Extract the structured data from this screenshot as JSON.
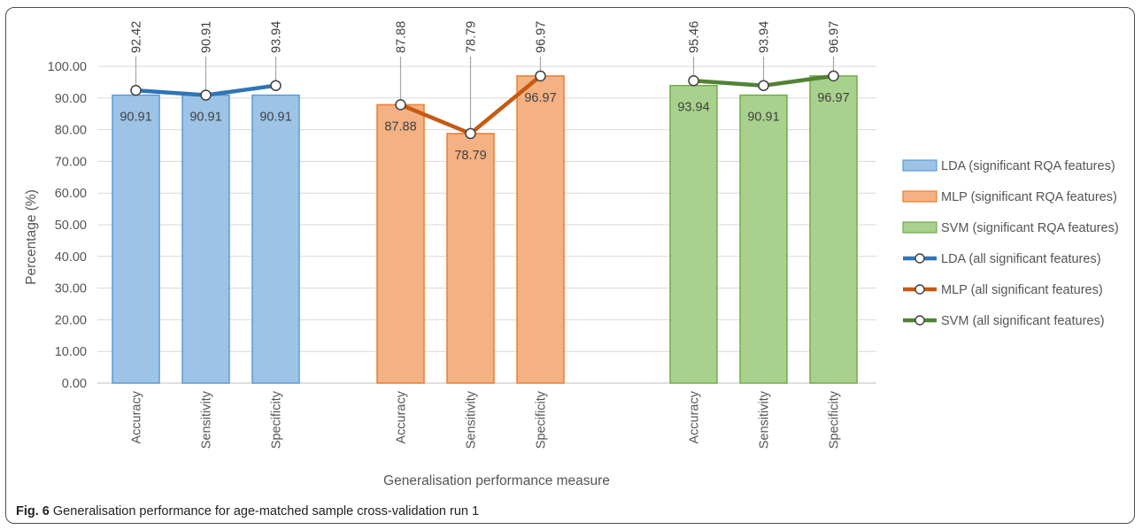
{
  "caption": {
    "label": "Fig. 6",
    "text": "Generalisation performance for age-matched sample cross-validation run 1"
  },
  "chart_data": {
    "type": "bar",
    "ylabel": "Percentage (%)",
    "xlabel": "Generalisation performance measure",
    "ylim": [
      0,
      100
    ],
    "yticks": [
      "0.00",
      "10.00",
      "20.00",
      "30.00",
      "40.00",
      "50.00",
      "60.00",
      "70.00",
      "80.00",
      "90.00",
      "100.00"
    ],
    "grid": true,
    "legend_position": "right",
    "groups": [
      {
        "categories": [
          "Accuracy",
          "Sensitivity",
          "Specificity"
        ],
        "bar_series": {
          "name": "LDA (significant RQA features)",
          "values": [
            90.91,
            90.91,
            90.91
          ],
          "labels": [
            "90.91",
            "90.91",
            "90.91"
          ],
          "fill": "#9dc3e6",
          "stroke": "#5b9bd5"
        },
        "line_series": {
          "name": "LDA (all significant features)",
          "values": [
            92.42,
            90.91,
            93.94
          ],
          "labels": [
            "92.42",
            "90.91",
            "93.94"
          ],
          "color": "#2e75b6"
        }
      },
      {
        "categories": [
          "Accuracy",
          "Sensitivity",
          "Specificity"
        ],
        "bar_series": {
          "name": "MLP (significant RQA features)",
          "values": [
            87.88,
            78.79,
            96.97
          ],
          "labels": [
            "87.88",
            "78.79",
            "96.97"
          ],
          "fill": "#f4b183",
          "stroke": "#ed7d31"
        },
        "line_series": {
          "name": "MLP (all significant features)",
          "values": [
            87.88,
            78.79,
            96.97
          ],
          "labels": [
            "87.88",
            "78.79",
            "96.97"
          ],
          "color": "#c55a11"
        }
      },
      {
        "categories": [
          "Accuracy",
          "Sensitivity",
          "Specificity"
        ],
        "bar_series": {
          "name": "SVM (significant RQA features)",
          "values": [
            93.94,
            90.91,
            96.97
          ],
          "labels": [
            "93.94",
            "90.91",
            "96.97"
          ],
          "fill": "#a9d18e",
          "stroke": "#70ad47"
        },
        "line_series": {
          "name": "SVM (all significant features)",
          "values": [
            95.46,
            93.94,
            96.97
          ],
          "labels": [
            "95.46",
            "93.94",
            "96.97"
          ],
          "color": "#548235"
        }
      }
    ],
    "legend": [
      {
        "name": "LDA (significant RQA features)",
        "kind": "bar",
        "fill": "#9dc3e6",
        "stroke": "#5b9bd5"
      },
      {
        "name": "MLP (significant RQA features)",
        "kind": "bar",
        "fill": "#f4b183",
        "stroke": "#ed7d31"
      },
      {
        "name": "SVM (significant RQA features)",
        "kind": "bar",
        "fill": "#a9d18e",
        "stroke": "#70ad47"
      },
      {
        "name": "LDA (all significant features)",
        "kind": "line",
        "color": "#2e75b6"
      },
      {
        "name": "MLP (all significant features)",
        "kind": "line",
        "color": "#c55a11"
      },
      {
        "name": "SVM (all significant features)",
        "kind": "line",
        "color": "#548235"
      }
    ]
  }
}
